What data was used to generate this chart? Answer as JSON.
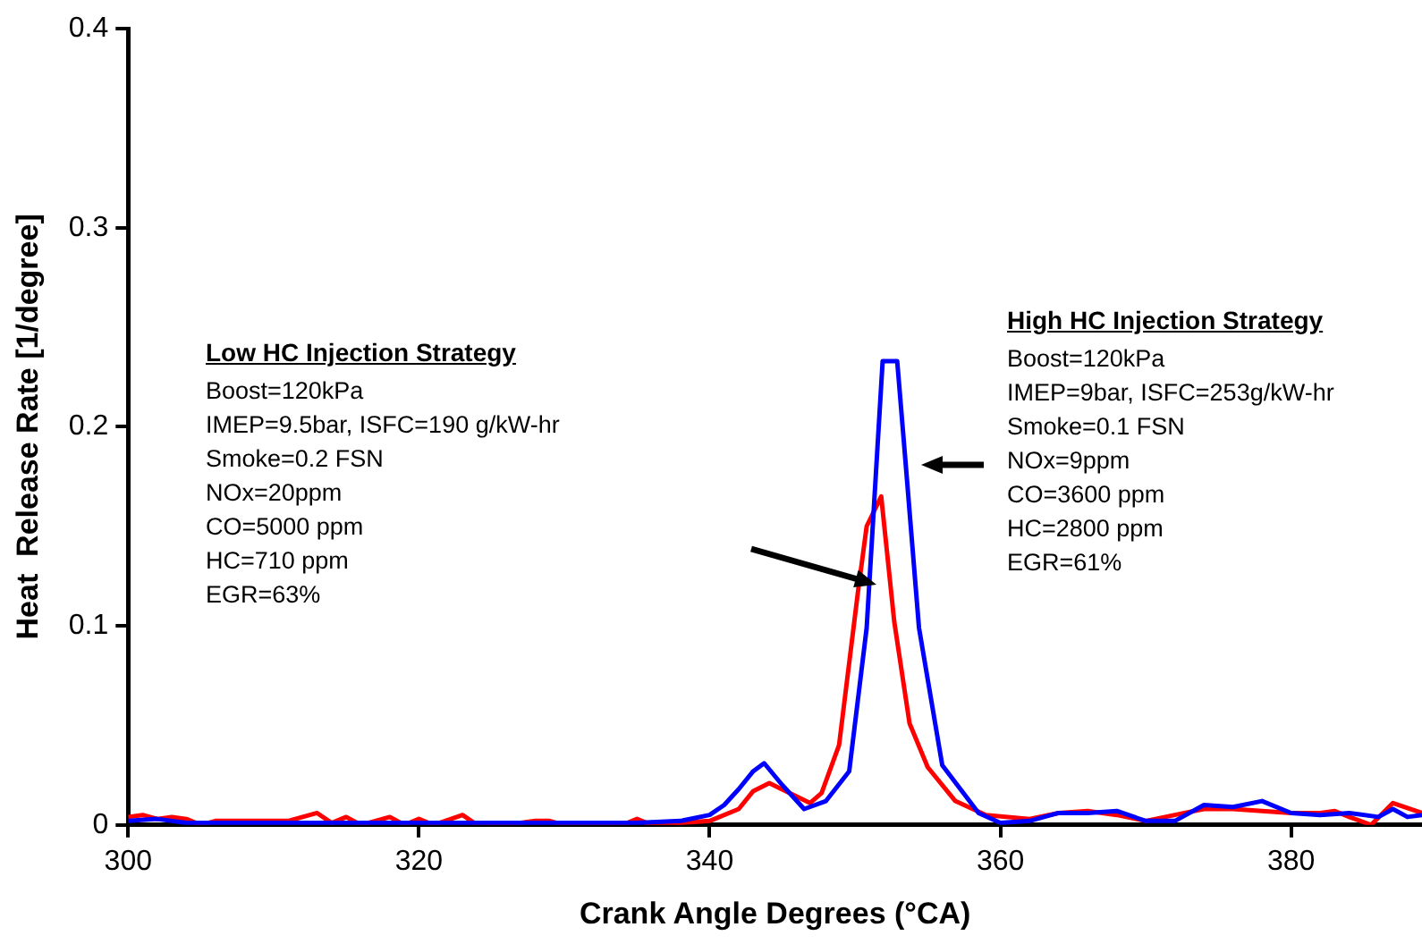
{
  "chart_data": {
    "type": "line",
    "xlabel": "Crank Angle Degrees (°CA)",
    "ylabel": "Heat  Release Rate [1/degree]",
    "xlim": [
      300,
      389
    ],
    "xticks": [
      300,
      320,
      340,
      360,
      380
    ],
    "ylim": [
      0,
      0.4
    ],
    "yticks": [
      0,
      0.1,
      0.2,
      0.3,
      0.4
    ],
    "grid": false,
    "legend": false,
    "marker": "none",
    "line_style": "solid",
    "annotations": [
      "Low HC Injection Strategy\nBoost=120kPa\nIMEP=9.5bar, ISFC=190 g/kW-hr\nSmoke=0.2 FSN\nNOx=20ppm\nCO=5000 ppm\nHC=710 ppm\nEGR=63%",
      "High HC Injection Strategy\nBoost=120kPa\nIMEP=9bar, ISFC=253g/kW-hr\nSmoke=0.1 FSN\nNOx=9ppm\nCO=3600 ppm\nHC=2800 ppm\nEGR=61%"
    ],
    "series": [
      {
        "color": "#0000ff",
        "x": [
          300,
          302,
          304,
          306,
          310,
          315,
          320,
          325,
          330,
          335,
          338,
          340,
          341,
          342,
          343,
          343.75,
          345,
          346.5,
          348,
          349.6,
          350.8,
          351.9,
          352.9,
          353.5,
          354.4,
          356,
          358.5,
          360,
          362,
          364,
          366,
          368,
          370,
          372,
          374,
          376,
          378,
          380,
          382,
          384,
          386,
          387,
          388,
          389
        ],
        "values": [
          0.002,
          0.003,
          0.001,
          0.001,
          0.001,
          0.001,
          0.001,
          0.001,
          0.001,
          0.001,
          0.002,
          0.005,
          0.01,
          0.018,
          0.027,
          0.031,
          0.02,
          0.008,
          0.012,
          0.027,
          0.099,
          0.233,
          0.233,
          0.18,
          0.099,
          0.03,
          0.006,
          0.001,
          0.002,
          0.006,
          0.006,
          0.007,
          0.002,
          0.002,
          0.01,
          0.009,
          0.012,
          0.006,
          0.005,
          0.006,
          0.004,
          0.008,
          0.004,
          0.005
        ]
      },
      {
        "color": "#ff0000",
        "x": [
          300,
          301,
          302,
          303,
          304,
          305,
          306,
          308,
          311,
          313,
          314,
          315,
          316,
          318,
          319,
          320,
          321,
          323,
          324,
          326,
          328,
          329,
          330,
          334,
          335,
          336,
          340,
          342,
          343,
          344.1,
          346.9,
          347.7,
          348.9,
          350.2,
          350.8,
          351.8,
          352.7,
          353.75,
          355,
          356.9,
          359,
          362,
          364,
          366,
          368,
          370,
          372,
          374,
          376,
          378,
          380,
          382,
          383,
          384,
          385.5,
          387,
          389
        ],
        "values": [
          0.004,
          0.005,
          0.003,
          0.004,
          0.003,
          0,
          0.002,
          0.002,
          0.002,
          0.006,
          0.001,
          0.004,
          0,
          0.004,
          0,
          0.003,
          0,
          0.005,
          0,
          0,
          0.002,
          0.002,
          0,
          0,
          0.003,
          0,
          0.002,
          0.008,
          0.017,
          0.021,
          0.011,
          0.016,
          0.04,
          0.117,
          0.15,
          0.165,
          0.102,
          0.051,
          0.029,
          0.012,
          0.005,
          0.003,
          0.006,
          0.007,
          0.005,
          0.002,
          0.005,
          0.008,
          0.008,
          0.007,
          0.006,
          0.006,
          0.007,
          0.004,
          0,
          0.011,
          0.006
        ]
      }
    ]
  }
}
